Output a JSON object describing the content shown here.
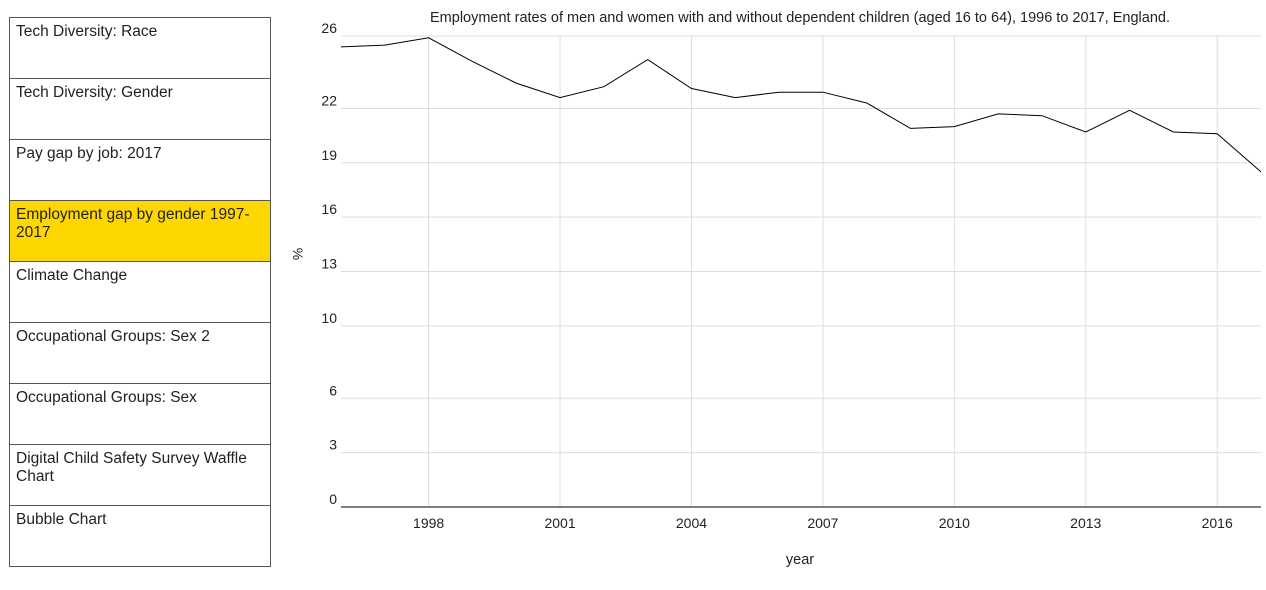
{
  "sidebar": {
    "items": [
      {
        "label": "Tech Diversity: Race",
        "active": false
      },
      {
        "label": "Tech Diversity: Gender",
        "active": false
      },
      {
        "label": "Pay gap by job: 2017",
        "active": false
      },
      {
        "label": "Employment gap by gender 1997-2017",
        "active": true
      },
      {
        "label": "Climate Change",
        "active": false
      },
      {
        "label": "Occupational Groups: Sex 2",
        "active": false
      },
      {
        "label": "Occupational Groups: Sex",
        "active": false
      },
      {
        "label": "Digital Child Safety Survey Waffle Chart",
        "active": false
      },
      {
        "label": "Bubble Chart",
        "active": false
      }
    ]
  },
  "chart_data": {
    "type": "line",
    "title": "Employment rates of men and women with and without dependent children (aged 16 to 64), 1996 to 2017, England.",
    "xlabel": "year",
    "ylabel": "%",
    "x": [
      1996,
      1997,
      1998,
      1999,
      2000,
      2001,
      2002,
      2003,
      2004,
      2005,
      2006,
      2007,
      2008,
      2009,
      2010,
      2011,
      2012,
      2013,
      2014,
      2015,
      2016,
      2017
    ],
    "series": [
      {
        "name": "",
        "values": [
          25.4,
          25.5,
          25.9,
          24.6,
          23.4,
          22.6,
          23.2,
          24.7,
          23.1,
          22.6,
          22.9,
          22.9,
          22.3,
          20.9,
          21.0,
          21.7,
          21.6,
          20.7,
          21.9,
          20.7,
          20.6,
          18.5
        ]
      }
    ],
    "xlim": [
      1996,
      2017
    ],
    "ylim": [
      0,
      26
    ],
    "x_ticks": [
      1998,
      2001,
      2004,
      2007,
      2010,
      2013,
      2016
    ],
    "y_ticks": [
      0,
      3,
      6,
      10,
      13,
      16,
      19,
      22,
      26
    ],
    "grid": true,
    "line_color": "#000000",
    "grid_color": "#dddddd"
  }
}
